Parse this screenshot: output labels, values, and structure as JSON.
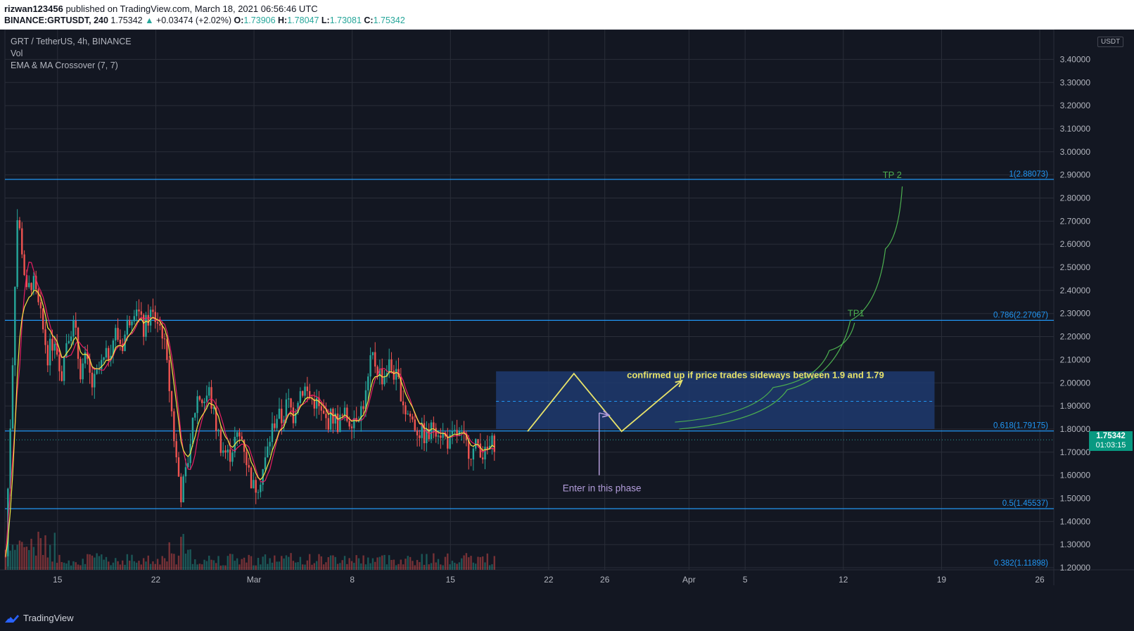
{
  "header": {
    "author": "rizwan123456",
    "published": " published on TradingView.com, March 18, 2021 06:56:46 UTC",
    "symbol": "BINANCE:GRTUSDT, 240",
    "last": "1.75342",
    "change": "+0.03474 (+2.02%)",
    "o_label": "O:",
    "o_value": "1.73906",
    "h_label": "H:",
    "h_value": "1.78047",
    "l_label": "L:",
    "l_value": "1.73081",
    "c_label": "C:",
    "c_value": "1.75342"
  },
  "legend": {
    "title": "GRT / TetherUS, 4h, BINANCE",
    "vol": "Vol",
    "indicator": "EMA & MA Crossover (7, 7)"
  },
  "axis": {
    "currency": "USDT",
    "current_price": "1.75342",
    "countdown": "01:03:15"
  },
  "footer": {
    "brand": "TradingView"
  },
  "colors": {
    "background": "#131722",
    "grid": "#2a2e39",
    "up": "#26a69a",
    "down": "#ef5350",
    "fib_line": "#2196f3",
    "ema": "#f5e642",
    "ma": "#e91e63",
    "annotation": "#e8e36a",
    "tp": "#4caf50",
    "arrow": "#b39ddb",
    "box": "#1e3a6e"
  },
  "chart_data": {
    "type": "candlestick",
    "title": "GRT / TetherUS, 4h, BINANCE",
    "ylim": [
      1.13,
      3.45
    ],
    "y_ticks": [
      3.4,
      3.3,
      3.2,
      3.1,
      3.0,
      2.9,
      2.8,
      2.7,
      2.6,
      2.5,
      2.4,
      2.3,
      2.2,
      2.1,
      2.0,
      1.9,
      1.8,
      1.7,
      1.6,
      1.5,
      1.4,
      1.3,
      1.2
    ],
    "x_ticks": [
      {
        "label": "15",
        "day": 15
      },
      {
        "label": "22",
        "day": 22
      },
      {
        "label": "Mar",
        "day": 29
      },
      {
        "label": "8",
        "day": 36
      },
      {
        "label": "15",
        "day": 43
      },
      {
        "label": "22",
        "day": 50
      },
      {
        "label": "26",
        "day": 54
      },
      {
        "label": "Apr",
        "day": 60
      },
      {
        "label": "5",
        "day": 64
      },
      {
        "label": "12",
        "day": 71
      },
      {
        "label": "19",
        "day": 78
      },
      {
        "label": "26",
        "day": 85
      }
    ],
    "x_range_days": [
      11.25,
      86.0
    ],
    "last_candle_day": 46.25,
    "price_path": [
      [
        11.3,
        1.25
      ],
      [
        11.5,
        1.6
      ],
      [
        11.8,
        2.1
      ],
      [
        12.1,
        2.72
      ],
      [
        12.4,
        2.62
      ],
      [
        12.8,
        2.38
      ],
      [
        13.2,
        2.45
      ],
      [
        13.8,
        2.28
      ],
      [
        14.3,
        2.12
      ],
      [
        14.8,
        2.2
      ],
      [
        15.3,
        2.04
      ],
      [
        15.7,
        2.22
      ],
      [
        16.2,
        2.25
      ],
      [
        16.6,
        2.05
      ],
      [
        17.0,
        2.1
      ],
      [
        17.5,
        1.98
      ],
      [
        18.0,
        2.06
      ],
      [
        18.6,
        2.12
      ],
      [
        19.1,
        2.22
      ],
      [
        19.6,
        2.16
      ],
      [
        20.1,
        2.28
      ],
      [
        20.6,
        2.35
      ],
      [
        21.1,
        2.22
      ],
      [
        21.6,
        2.3
      ],
      [
        22.1,
        2.27
      ],
      [
        22.5,
        2.22
      ],
      [
        23.0,
        1.96
      ],
      [
        23.4,
        1.7
      ],
      [
        23.8,
        1.52
      ],
      [
        24.2,
        1.62
      ],
      [
        24.6,
        1.82
      ],
      [
        25.0,
        1.95
      ],
      [
        25.4,
        1.92
      ],
      [
        25.8,
        1.96
      ],
      [
        26.2,
        1.84
      ],
      [
        26.7,
        1.72
      ],
      [
        27.2,
        1.68
      ],
      [
        27.7,
        1.76
      ],
      [
        28.2,
        1.76
      ],
      [
        28.6,
        1.62
      ],
      [
        29.0,
        1.54
      ],
      [
        29.4,
        1.58
      ],
      [
        29.8,
        1.66
      ],
      [
        30.2,
        1.78
      ],
      [
        30.6,
        1.86
      ],
      [
        31.0,
        1.84
      ],
      [
        31.4,
        1.92
      ],
      [
        31.8,
        1.86
      ],
      [
        32.2,
        1.96
      ],
      [
        32.6,
        1.98
      ],
      [
        33.0,
        1.93
      ],
      [
        33.4,
        1.92
      ],
      [
        33.8,
        1.86
      ],
      [
        34.2,
        1.83
      ],
      [
        34.6,
        1.86
      ],
      [
        35.0,
        1.82
      ],
      [
        35.4,
        1.86
      ],
      [
        35.8,
        1.84
      ],
      [
        36.2,
        1.86
      ],
      [
        36.6,
        1.88
      ],
      [
        37.0,
        1.95
      ],
      [
        37.4,
        2.12
      ],
      [
        37.8,
        2.06
      ],
      [
        38.2,
        2.02
      ],
      [
        38.6,
        2.08
      ],
      [
        39.0,
        2.04
      ],
      [
        39.4,
        1.98
      ],
      [
        39.8,
        1.88
      ],
      [
        40.2,
        1.85
      ],
      [
        40.6,
        1.8
      ],
      [
        41.0,
        1.78
      ],
      [
        41.4,
        1.76
      ],
      [
        41.8,
        1.82
      ],
      [
        42.2,
        1.8
      ],
      [
        42.6,
        1.76
      ],
      [
        43.0,
        1.74
      ],
      [
        43.4,
        1.78
      ],
      [
        43.8,
        1.76
      ],
      [
        44.2,
        1.72
      ],
      [
        44.6,
        1.7
      ],
      [
        45.0,
        1.74
      ],
      [
        45.4,
        1.68
      ],
      [
        45.8,
        1.72
      ],
      [
        46.25,
        1.75342
      ]
    ],
    "current_price": 1.75342,
    "fib_levels": [
      {
        "label": "1(2.88073)",
        "value": 2.88073
      },
      {
        "label": "0.786(2.27067)",
        "value": 2.27067
      },
      {
        "label": "0.618(1.79175)",
        "value": 1.79175
      },
      {
        "label": "0.5(1.45537)",
        "value": 1.45537
      },
      {
        "label": "0.382(1.11898)",
        "value": 1.11898
      }
    ],
    "range_box": {
      "from_day": 46.25,
      "to_day": 77.5,
      "top": 2.05,
      "bottom": 1.8,
      "mid": 1.92
    },
    "zigzag": [
      [
        48.5,
        1.79
      ],
      [
        51.8,
        2.04
      ],
      [
        55.2,
        1.79
      ],
      [
        59.5,
        2.01
      ]
    ],
    "entry_arrow": {
      "day": 53.6,
      "from": 1.6,
      "to": 1.87
    },
    "tp_curves": [
      {
        "label": "TP1",
        "points": [
          [
            59.0,
            1.83
          ],
          [
            66.0,
            1.98
          ],
          [
            70.0,
            2.14
          ],
          [
            71.8,
            2.26
          ]
        ]
      },
      {
        "label": "TP 2",
        "points": [
          [
            59.3,
            1.8
          ],
          [
            67.0,
            1.97
          ],
          [
            71.5,
            2.27
          ],
          [
            74.0,
            2.58
          ],
          [
            75.2,
            2.85
          ]
        ]
      }
    ],
    "annotations": {
      "confirm_text": "confirmed up if price trades sideways between 1.9 and 1.79",
      "enter_text": "Enter in this phase",
      "tp1": "TP1",
      "tp2": "TP 2"
    }
  }
}
